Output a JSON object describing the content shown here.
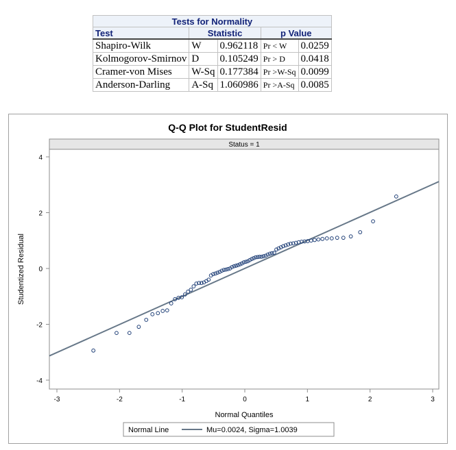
{
  "table": {
    "title": "Tests for Normality",
    "headers": [
      "Test",
      "Statistic",
      "p Value"
    ],
    "rows": [
      {
        "test": "Shapiro-Wilk",
        "stat_name": "W",
        "stat": "0.962118",
        "p_name": "Pr < W",
        "p": "0.0259"
      },
      {
        "test": "Kolmogorov-Smirnov",
        "stat_name": "D",
        "stat": "0.105249",
        "p_name": "Pr > D",
        "p": "0.0418"
      },
      {
        "test": "Cramer-von Mises",
        "stat_name": "W-Sq",
        "stat": "0.177384",
        "p_name": "Pr >W-Sq",
        "p": "0.0099"
      },
      {
        "test": "Anderson-Darling",
        "stat_name": "A-Sq",
        "stat": "1.060986",
        "p_name": "Pr >A-Sq",
        "p": "0.0085"
      }
    ]
  },
  "chart_data": {
    "type": "scatter",
    "title": "Q-Q Plot for StudentResid",
    "panel_label": "Status = 1",
    "xlabel": "Normal Quantiles",
    "ylabel": "Studentized Residual",
    "xlim": [
      -3.1,
      3.1
    ],
    "ylim": [
      -4.2,
      4.3
    ],
    "xticks": [
      -3,
      -2,
      -1,
      0,
      1,
      2,
      3
    ],
    "yticks": [
      -4,
      -2,
      0,
      2,
      4
    ],
    "grid": false,
    "marker_color": "#1f3f77",
    "line_color": "#667788",
    "reference_line": {
      "name": "Normal Line",
      "label": "Mu=0.0024, Sigma=1.0039",
      "intercept": 0.0024,
      "slope": 1.0039
    },
    "legend_placement": "bottom",
    "x": [
      -2.418,
      -2.048,
      -1.842,
      -1.693,
      -1.574,
      -1.475,
      -1.388,
      -1.311,
      -1.24,
      -1.175,
      -1.115,
      -1.059,
      -1.005,
      -0.955,
      -0.907,
      -0.861,
      -0.817,
      -0.774,
      -0.732,
      -0.692,
      -0.653,
      -0.614,
      -0.577,
      -0.54,
      -0.504,
      -0.469,
      -0.435,
      -0.401,
      -0.367,
      -0.334,
      -0.301,
      -0.269,
      -0.237,
      -0.205,
      -0.173,
      -0.141,
      -0.11,
      -0.078,
      -0.047,
      -0.016,
      0.016,
      0.047,
      0.078,
      0.11,
      0.141,
      0.173,
      0.205,
      0.237,
      0.269,
      0.301,
      0.334,
      0.367,
      0.401,
      0.435,
      0.469,
      0.504,
      0.54,
      0.577,
      0.614,
      0.653,
      0.692,
      0.732,
      0.774,
      0.817,
      0.861,
      0.907,
      0.955,
      1.005,
      1.059,
      1.115,
      1.175,
      1.24,
      1.311,
      1.388,
      1.475,
      1.574,
      1.693,
      1.842,
      2.048,
      2.418
    ],
    "y": [
      -2.94,
      -2.31,
      -2.31,
      -2.09,
      -1.84,
      -1.64,
      -1.6,
      -1.52,
      -1.5,
      -1.25,
      -1.1,
      -1.05,
      -1.03,
      -0.93,
      -0.83,
      -0.76,
      -0.64,
      -0.54,
      -0.52,
      -0.52,
      -0.5,
      -0.45,
      -0.4,
      -0.25,
      -0.2,
      -0.18,
      -0.15,
      -0.12,
      -0.08,
      -0.05,
      -0.04,
      -0.02,
      0.0,
      0.05,
      0.08,
      0.1,
      0.12,
      0.15,
      0.18,
      0.22,
      0.24,
      0.26,
      0.3,
      0.34,
      0.37,
      0.4,
      0.41,
      0.42,
      0.42,
      0.44,
      0.46,
      0.5,
      0.53,
      0.55,
      0.56,
      0.68,
      0.72,
      0.76,
      0.8,
      0.83,
      0.86,
      0.89,
      0.9,
      0.92,
      0.94,
      0.96,
      0.97,
      0.98,
      1.0,
      1.02,
      1.04,
      1.06,
      1.08,
      1.08,
      1.1,
      1.1,
      1.15,
      1.3,
      1.69,
      2.58
    ]
  }
}
